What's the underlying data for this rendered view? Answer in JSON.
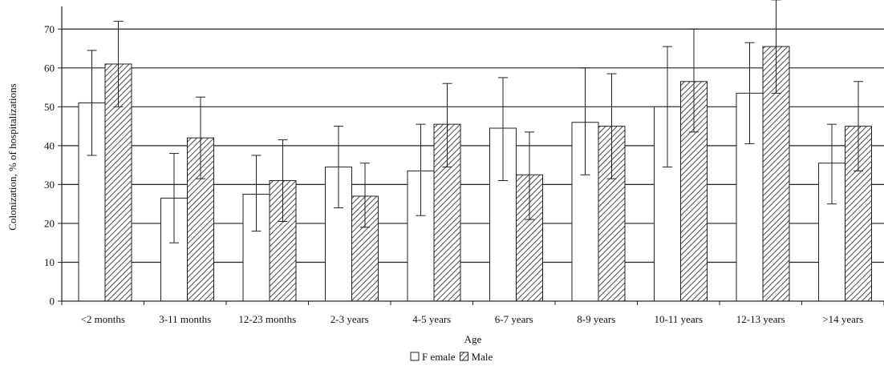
{
  "chart_data": {
    "type": "bar",
    "title": "",
    "xlabel": "Age",
    "ylabel": "Colonization, % of hospitalizations",
    "ylim": [
      0,
      75
    ],
    "yticks": [
      0,
      10,
      20,
      30,
      40,
      50,
      60,
      70
    ],
    "grid": "horizontal",
    "legend_position": "bottom-center",
    "categories": [
      "<2 months",
      "3-11 months",
      "12-23 months",
      "2-3 years",
      "4-5 years",
      "6-7 years",
      "8-9 years",
      "10-11 years",
      "12-13 years",
      ">14 years"
    ],
    "series": [
      {
        "name": "F emale",
        "pattern": "open",
        "color": "#ffffff",
        "values": [
          51,
          26.5,
          27.5,
          34.5,
          33.5,
          44.5,
          46,
          50,
          53.5,
          35.5
        ],
        "error_low": [
          37.5,
          15,
          18,
          24,
          22,
          31,
          32.5,
          34.5,
          40.5,
          25
        ],
        "error_high": [
          64.5,
          38,
          37.5,
          45,
          45.5,
          57.5,
          60,
          65.5,
          66.5,
          45.5
        ]
      },
      {
        "name": "Male",
        "pattern": "hatched",
        "color": "#cccccc",
        "values": [
          61,
          42,
          31,
          27,
          45.5,
          32.5,
          45,
          56.5,
          65.5,
          45
        ],
        "error_low": [
          50,
          31.5,
          20.5,
          19,
          34.5,
          21,
          31.5,
          43.5,
          53.5,
          33.5
        ],
        "error_high": [
          72,
          52.5,
          41.5,
          35.5,
          56,
          43.5,
          58.5,
          70,
          77.5,
          56.5
        ]
      }
    ]
  }
}
